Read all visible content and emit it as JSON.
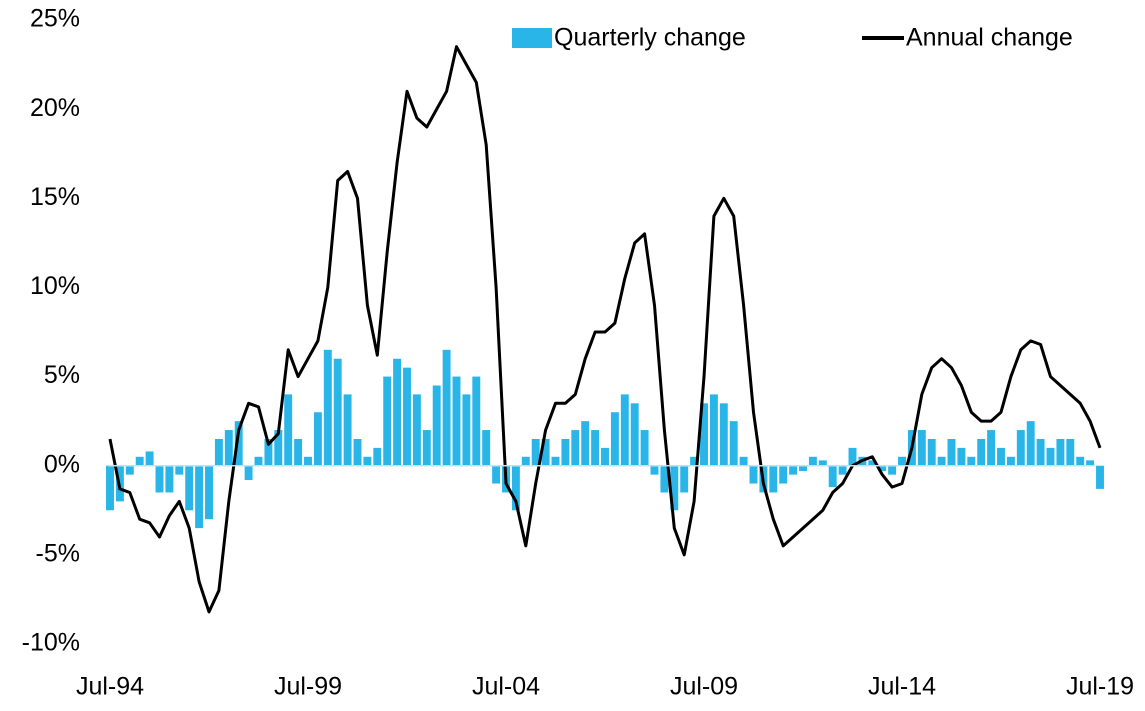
{
  "chart_data": {
    "type": "bar-line",
    "categories": [
      "Jul-94",
      null,
      null,
      null,
      null,
      null,
      null,
      null,
      null,
      null,
      null,
      null,
      null,
      null,
      null,
      null,
      null,
      null,
      null,
      null,
      "Jul-99",
      null,
      null,
      null,
      null,
      null,
      null,
      null,
      null,
      null,
      null,
      null,
      null,
      null,
      null,
      null,
      null,
      null,
      null,
      null,
      "Jul-04",
      null,
      null,
      null,
      null,
      null,
      null,
      null,
      null,
      null,
      null,
      null,
      null,
      null,
      null,
      null,
      null,
      null,
      null,
      null,
      "Jul-09",
      null,
      null,
      null,
      null,
      null,
      null,
      null,
      null,
      null,
      null,
      null,
      null,
      null,
      null,
      null,
      null,
      null,
      null,
      null,
      "Jul-14",
      null,
      null,
      null,
      null,
      null,
      null,
      null,
      null,
      null,
      null,
      null,
      null,
      null,
      null,
      null,
      null,
      null,
      null,
      null,
      "Jul-19"
    ],
    "series": [
      {
        "name": "Quarterly change",
        "kind": "bar",
        "color": "#29b5e8",
        "values": [
          -2.5,
          -2,
          -0.5,
          0.5,
          0.8,
          -1.5,
          -1.5,
          -0.5,
          -2.5,
          -3.5,
          -3,
          1.5,
          2,
          2.5,
          -0.8,
          0.5,
          1.5,
          2,
          4,
          1.5,
          0.5,
          3,
          6.5,
          6,
          4,
          1.5,
          0.5,
          1,
          5,
          6,
          5.5,
          4,
          2,
          4.5,
          6.5,
          5,
          4,
          5,
          2,
          -1,
          -1.5,
          -2.5,
          0.5,
          1.5,
          1.5,
          0.5,
          1.5,
          2,
          2.5,
          2,
          1,
          3,
          4,
          3.5,
          2,
          -0.5,
          -1.5,
          -2.5,
          -1.5,
          0.5,
          3.5,
          4,
          3.5,
          2.5,
          0.5,
          -1,
          -1.5,
          -1.5,
          -1,
          -0.5,
          -0.3,
          0.5,
          0.3,
          -1.2,
          -0.5,
          1,
          0.5,
          0.3,
          -0.3,
          -0.5,
          0.5,
          2,
          2,
          1.5,
          0.5,
          1.5,
          1,
          0.5,
          1.5,
          2,
          1,
          0.5,
          2,
          2.5,
          1.5,
          1,
          1.5,
          1.5,
          0.5,
          0.3,
          -1.3
        ]
      },
      {
        "name": "Annual change",
        "kind": "line",
        "color": "#000000",
        "values": [
          1.5,
          -1.3,
          -1.5,
          -3,
          -3.2,
          -4,
          -2.8,
          -2,
          -3.5,
          -6.5,
          -8.2,
          -7,
          -2,
          2,
          3.5,
          3.3,
          1.2,
          1.8,
          6.5,
          5,
          6,
          7,
          10,
          16,
          16.5,
          15,
          9,
          6.2,
          12,
          17,
          21,
          19.5,
          19,
          20,
          21,
          23.5,
          22.5,
          21.5,
          18,
          10,
          -1,
          -2,
          -4.5,
          -1,
          2,
          3.5,
          3.5,
          4,
          6,
          7.5,
          7.5,
          8,
          10.5,
          12.5,
          13,
          9,
          2,
          -3.5,
          -5,
          -2,
          5,
          14,
          15,
          14,
          9,
          3,
          -1,
          -3,
          -4.5,
          -4,
          -3.5,
          -3,
          -2.5,
          -1.5,
          -1,
          0,
          0.3,
          0.5,
          -0.5,
          -1.2,
          -1,
          1,
          4,
          5.5,
          6,
          5.5,
          4.5,
          3,
          2.5,
          2.5,
          3,
          5,
          6.5,
          7,
          6.8,
          5,
          4.5,
          4,
          3.5,
          2.5,
          1
        ]
      }
    ],
    "ylim": [
      -10,
      25
    ],
    "yticks": [
      {
        "value": -10,
        "label": "-10%"
      },
      {
        "value": -5,
        "label": "-5%"
      },
      {
        "value": 0,
        "label": "0%"
      },
      {
        "value": 5,
        "label": "5%"
      },
      {
        "value": 10,
        "label": "10%"
      },
      {
        "value": 15,
        "label": "15%"
      },
      {
        "value": 20,
        "label": "20%"
      },
      {
        "value": 25,
        "label": "25%"
      }
    ],
    "legend": "top-right"
  }
}
